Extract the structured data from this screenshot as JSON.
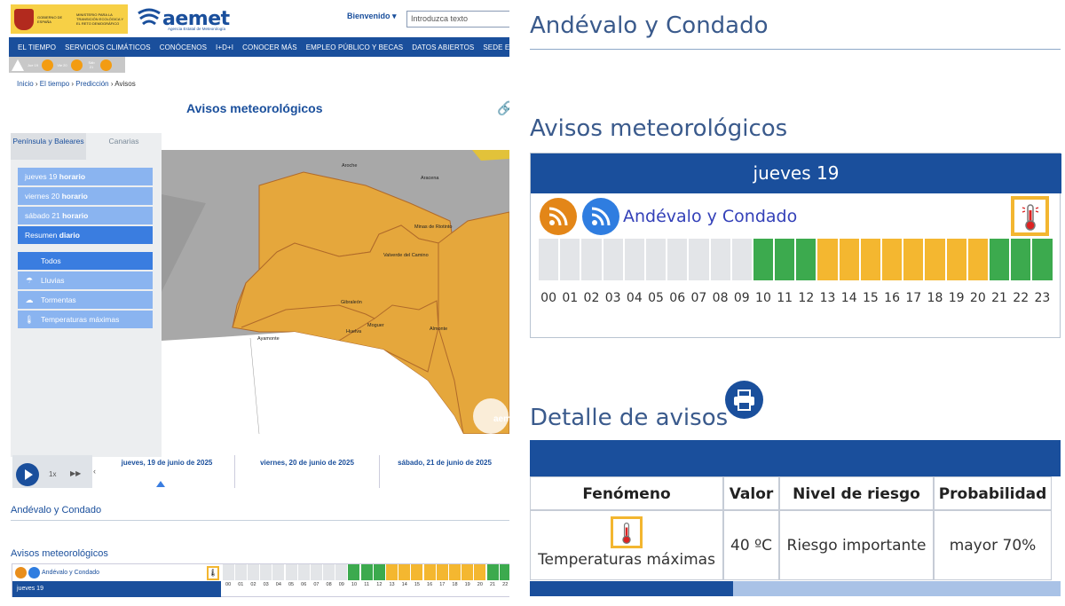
{
  "header": {
    "gov_text_1": "VICEPRESIDENCIA TERCERA DEL GOBIERNO",
    "gov_text_2": "MINISTERIO PARA LA TRANSICIÓN ECOLÓGICA Y EL RETO DEMOGRÁFICO",
    "gov_label": "GOBIERNO DE ESPAÑA",
    "brand": "aemet",
    "brand_sub": "Agencia Estatal de Meteorología",
    "welcome": "Bienvenido",
    "search_placeholder": "Introduzca texto"
  },
  "nav": [
    "EL TIEMPO",
    "SERVICIOS CLIMÁTICOS",
    "CONÓCENOS",
    "I+D+I",
    "CONOCER MÁS",
    "EMPLEO PÚBLICO Y BECAS",
    "DATOS ABIERTOS",
    "SEDE ELECTRÓ"
  ],
  "alert_days": [
    "Jue 19",
    "Vie 20",
    "Sáb 21"
  ],
  "breadcrumb": [
    "Inicio",
    "El tiempo",
    "Predicción",
    "Avisos"
  ],
  "page_title": "Avisos meteorológicos",
  "region_tabs": [
    "Península y Baleares",
    "Canarias"
  ],
  "days": [
    {
      "day": "jueves 19",
      "mode": "horario"
    },
    {
      "day": "viernes 20",
      "mode": "horario"
    },
    {
      "day": "sábado 21",
      "mode": "horario"
    },
    {
      "day": "Resumen",
      "mode": "diario"
    }
  ],
  "phenomena": [
    "Todos",
    "Lluvias",
    "Tormentas",
    "Temperaturas máximas"
  ],
  "map_places": [
    "Aroche",
    "Aracena",
    "Minas de Riotinto",
    "Valverde del Camino",
    "Gibraleón",
    "Ayamonte",
    "Huelva",
    "Moguer",
    "Almonte",
    "La"
  ],
  "map_brand": "aemet",
  "timeline": {
    "speed": "1x",
    "days": [
      "jueves, 19 de junio de 2025",
      "viernes, 20 de junio de 2025",
      "sábado, 21 de junio de 2025"
    ]
  },
  "zone": "Andévalo y Condado",
  "avisos_title": "Avisos meteorológicos",
  "detail_title": "Detalle de avisos",
  "day_label": "jueves 19",
  "hours": [
    "00",
    "01",
    "02",
    "03",
    "04",
    "05",
    "06",
    "07",
    "08",
    "09",
    "10",
    "11",
    "12",
    "13",
    "14",
    "15",
    "16",
    "17",
    "18",
    "19",
    "20",
    "21",
    "22",
    "23"
  ],
  "hour_levels": [
    "none",
    "none",
    "none",
    "none",
    "none",
    "none",
    "none",
    "none",
    "none",
    "none",
    "green",
    "green",
    "green",
    "yellow",
    "yellow",
    "yellow",
    "yellow",
    "yellow",
    "yellow",
    "yellow",
    "yellow",
    "green",
    "green",
    "green"
  ],
  "colors": {
    "none": "#e3e5e8",
    "green": "#3caa4e",
    "yellow": "#f4b730",
    "primary": "#1a4f9c",
    "orange": "#f0a83c"
  },
  "detail": {
    "headers": [
      "Fenómeno",
      "Valor",
      "Nivel de riesgo",
      "Probabilidad"
    ],
    "row": {
      "phenomenon": "Temperaturas máximas",
      "value": "40 ºC",
      "risk": "Riesgo importante",
      "probability": "mayor 70%"
    }
  }
}
